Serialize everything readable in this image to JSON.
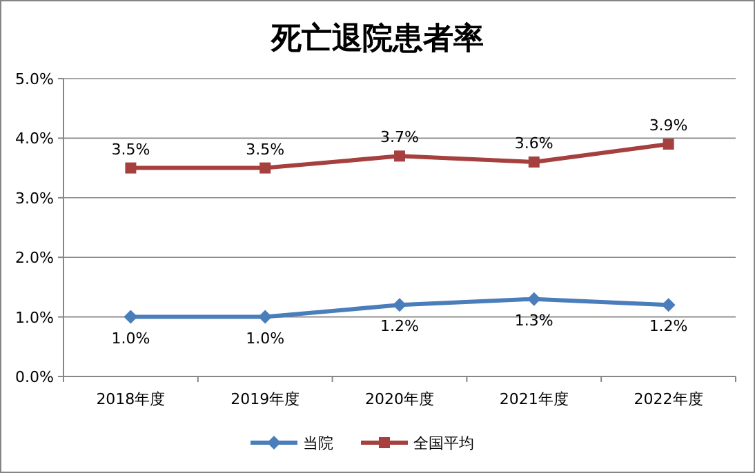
{
  "chart_data": {
    "type": "line",
    "title": "死亡退院患者率",
    "categories": [
      "2018年度",
      "2019年度",
      "2020年度",
      "2021年度",
      "2022年度"
    ],
    "series": [
      {
        "name": "当院",
        "color": "#4a7ebb",
        "marker": "diamond",
        "values": [
          1.0,
          1.0,
          1.2,
          1.3,
          1.2
        ],
        "value_labels": [
          "1.0%",
          "1.0%",
          "1.2%",
          "1.3%",
          "1.2%"
        ]
      },
      {
        "name": "全国平均",
        "color": "#a5403e",
        "marker": "square",
        "values": [
          3.5,
          3.5,
          3.7,
          3.6,
          3.9
        ],
        "value_labels": [
          "3.5%",
          "3.5%",
          "3.7%",
          "3.6%",
          "3.9%"
        ]
      }
    ],
    "ylim": [
      0,
      5
    ],
    "yticks": [
      {
        "value": 0,
        "label": "0.0%"
      },
      {
        "value": 1,
        "label": "1.0%"
      },
      {
        "value": 2,
        "label": "2.0%"
      },
      {
        "value": 3,
        "label": "3.0%"
      },
      {
        "value": 4,
        "label": "4.0%"
      },
      {
        "value": 5,
        "label": "5.0%"
      }
    ],
    "grid": "y",
    "legend": "bottom"
  }
}
